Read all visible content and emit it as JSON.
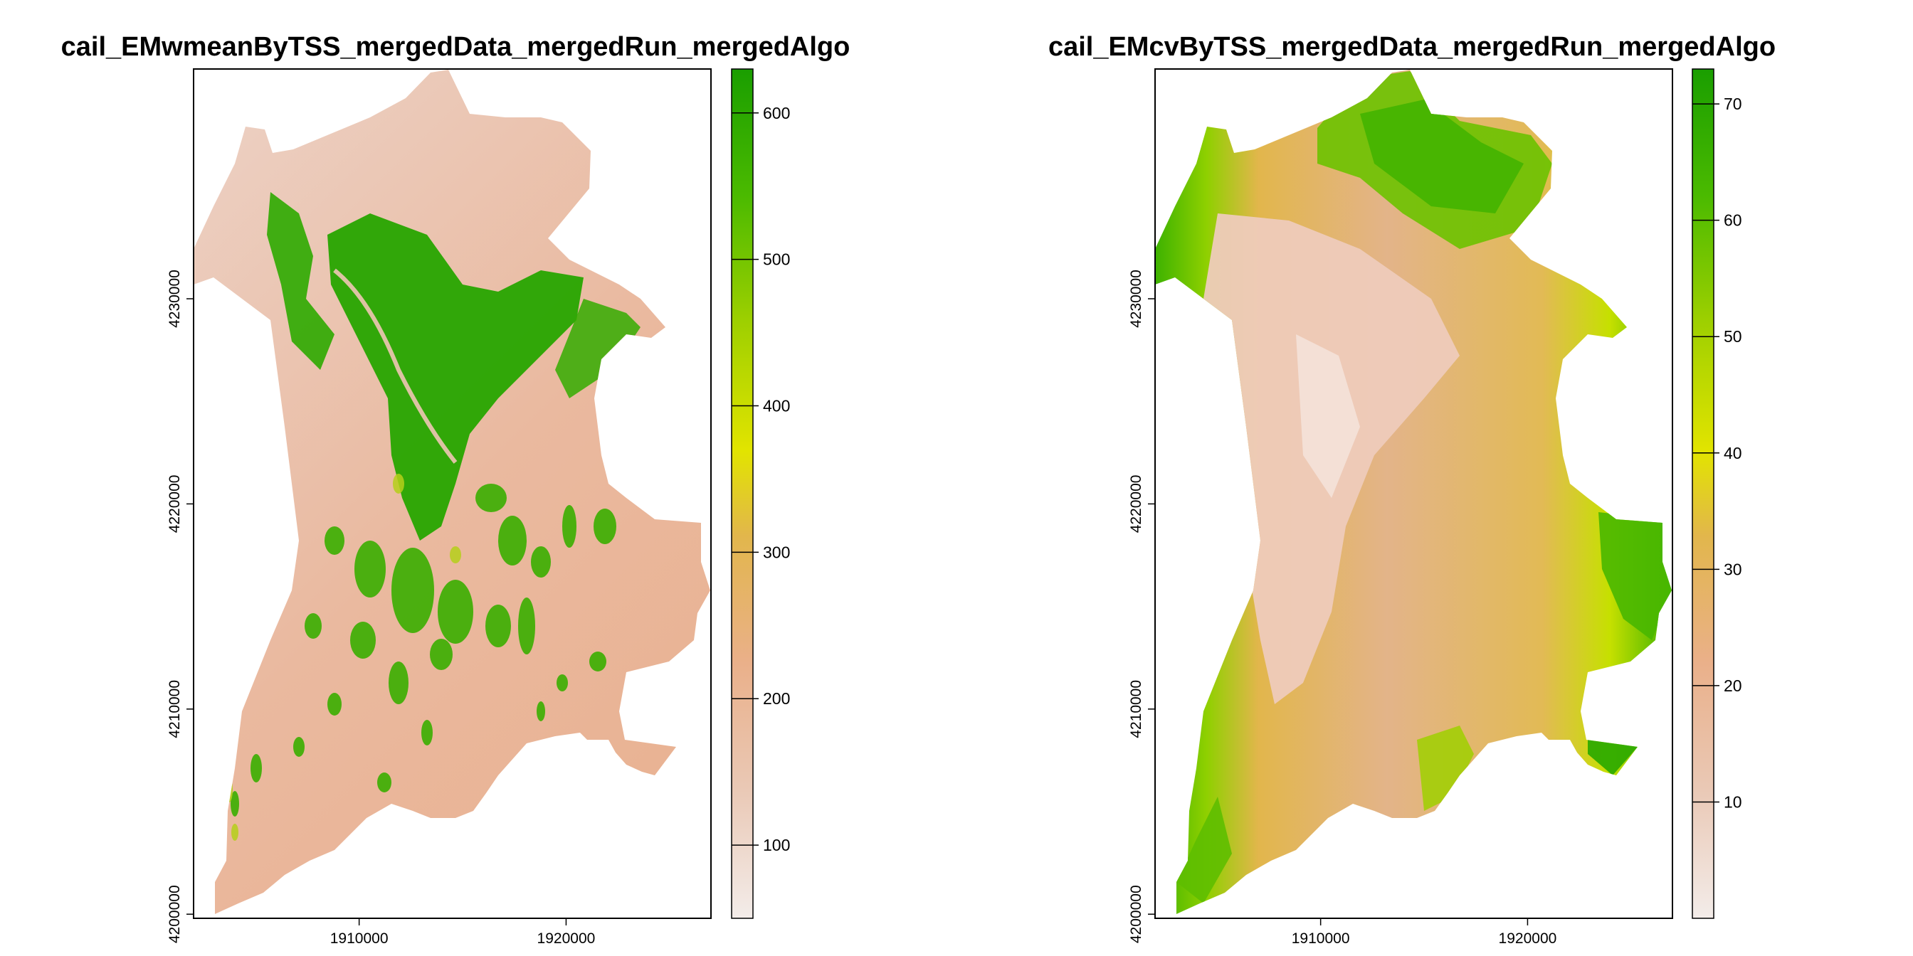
{
  "chart_data": [
    {
      "type": "heatmap",
      "title": "cail_EMwmeanByTSS_mergedData_mergedRun_mergedAlgo",
      "x_ticks": [
        "1910000",
        "1920000"
      ],
      "y_ticks": [
        "4200000",
        "4210000",
        "4220000",
        "4230000"
      ],
      "xlim": [
        1902000,
        1927000
      ],
      "ylim": [
        4199800,
        4241200
      ],
      "colorbar": {
        "ticks": [
          "100",
          "200",
          "300",
          "400",
          "500",
          "600"
        ],
        "range": [
          50,
          630
        ]
      },
      "palette": [
        "#f3ece9",
        "#eab89c",
        "#e2b64c",
        "#e2e400",
        "#8fd000",
        "#2bae00",
        "#1a9e00"
      ]
    },
    {
      "type": "heatmap",
      "title": "cail_EMcvByTSS_mergedData_mergedRun_mergedAlgo",
      "x_ticks": [
        "1910000",
        "1920000"
      ],
      "y_ticks": [
        "4200000",
        "4210000",
        "4220000",
        "4230000"
      ],
      "xlim": [
        1902000,
        1927000
      ],
      "ylim": [
        4199800,
        4241200
      ],
      "colorbar": {
        "ticks": [
          "10",
          "20",
          "30",
          "40",
          "50",
          "60",
          "70"
        ],
        "range": [
          0,
          73
        ]
      },
      "palette": [
        "#f3ece9",
        "#eab89c",
        "#e2b64c",
        "#e2e400",
        "#8fd000",
        "#2bae00",
        "#1a9e00"
      ]
    }
  ]
}
